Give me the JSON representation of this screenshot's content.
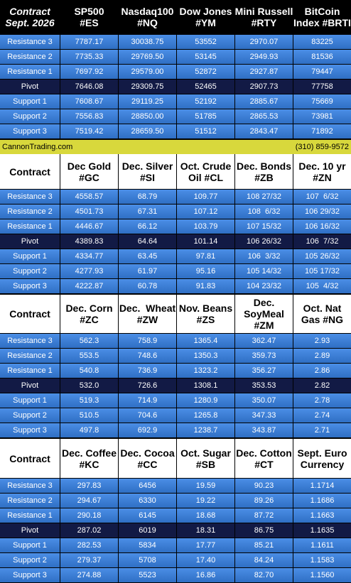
{
  "sections": [
    {
      "header": [
        [
          "Contract",
          "Sept. 2026"
        ],
        [
          "SP500",
          "#ES"
        ],
        [
          "Nasdaq100",
          "#NQ"
        ],
        [
          "Dow Jones",
          "#YM"
        ],
        [
          "Mini Russell",
          "#RTY"
        ],
        [
          "BitCoin",
          "Index #BRTI"
        ]
      ],
      "rows": [
        [
          "Resistance 3",
          "7787.17",
          "30038.75",
          "53552",
          "2970.07",
          "83225"
        ],
        [
          "Resistance 2",
          "7735.33",
          "29769.50",
          "53145",
          "2949.93",
          "81536"
        ],
        [
          "Resistance 1",
          "7697.92",
          "29579.00",
          "52872",
          "2927.87",
          "79447"
        ],
        [
          "Pivot",
          "7646.08",
          "29309.75",
          "52465",
          "2907.73",
          "77758"
        ],
        [
          "Support 1",
          "7608.67",
          "29119.25",
          "52192",
          "2885.67",
          "75669"
        ],
        [
          "Support 2",
          "7556.83",
          "28850.00",
          "51785",
          "2865.53",
          "73981"
        ],
        [
          "Support 3",
          "7519.42",
          "28659.50",
          "51512",
          "2843.47",
          "71892"
        ]
      ]
    },
    {
      "header": [
        [
          "Contract"
        ],
        [
          "Dec Gold",
          "#GC"
        ],
        [
          "Dec. Silver",
          "#SI"
        ],
        [
          "Oct. Crude",
          "Oil #CL"
        ],
        [
          "Dec. Bonds",
          "#ZB"
        ],
        [
          "Dec. 10 yr",
          "#ZN"
        ]
      ],
      "rows": [
        [
          "Resistance 3",
          "4558.57",
          "68.79",
          "109.77",
          "108 27/32",
          "107  6/32"
        ],
        [
          "Resistance 2",
          "4501.73",
          "67.31",
          "107.12",
          "108  6/32",
          "106 29/32"
        ],
        [
          "Resistance 1",
          "4446.67",
          "66.12",
          "103.79",
          "107 15/32",
          "106 16/32"
        ],
        [
          "Pivot",
          "4389.83",
          "64.64",
          "101.14",
          "106 26/32",
          "106  7/32"
        ],
        [
          "Support 1",
          "4334.77",
          "63.45",
          "97.81",
          "106  3/32",
          "105 26/32"
        ],
        [
          "Support 2",
          "4277.93",
          "61.97",
          "95.16",
          "105 14/32",
          "105 17/32"
        ],
        [
          "Support 3",
          "4222.87",
          "60.78",
          "91.83",
          "104 23/32",
          "105  4/32"
        ]
      ]
    },
    {
      "header": [
        [
          "Contract"
        ],
        [
          "Dec. Corn",
          "#ZC"
        ],
        [
          "Dec.  Wheat",
          "#ZW"
        ],
        [
          "Nov. Beans",
          "#ZS"
        ],
        [
          "Dec.",
          "SoyMeal",
          "#ZM"
        ],
        [
          "Oct. Nat",
          "Gas #NG"
        ]
      ],
      "rows": [
        [
          "Resistance 3",
          "562.3",
          "758.9",
          "1365.4",
          "362.47",
          "2.93"
        ],
        [
          "Resistance 2",
          "553.5",
          "748.6",
          "1350.3",
          "359.73",
          "2.89"
        ],
        [
          "Resistance 1",
          "540.8",
          "736.9",
          "1323.2",
          "356.27",
          "2.86"
        ],
        [
          "Pivot",
          "532.0",
          "726.6",
          "1308.1",
          "353.53",
          "2.82"
        ],
        [
          "Support 1",
          "519.3",
          "714.9",
          "1280.9",
          "350.07",
          "2.78"
        ],
        [
          "Support 2",
          "510.5",
          "704.6",
          "1265.8",
          "347.33",
          "2.74"
        ],
        [
          "Support 3",
          "497.8",
          "692.9",
          "1238.7",
          "343.87",
          "2.71"
        ]
      ]
    },
    {
      "header": [
        [
          "Contract"
        ],
        [
          "Dec. Coffee",
          "#KC"
        ],
        [
          "Dec. Cocoa",
          "#CC"
        ],
        [
          "Oct. Sugar",
          "#SB"
        ],
        [
          "Dec. Cotton",
          "#CT"
        ],
        [
          "Sept. Euro",
          "Currency"
        ]
      ],
      "rows": [
        [
          "Resistance 3",
          "297.83",
          "6456",
          "19.59",
          "90.23",
          "1.1714"
        ],
        [
          "Resistance 2",
          "294.67",
          "6330",
          "19.22",
          "89.26",
          "1.1686"
        ],
        [
          "Resistance 1",
          "290.18",
          "6145",
          "18.68",
          "87.72",
          "1.1663"
        ],
        [
          "Pivot",
          "287.02",
          "6019",
          "18.31",
          "86.75",
          "1.1635"
        ],
        [
          "Support 1",
          "282.53",
          "5834",
          "17.77",
          "85.21",
          "1.1611"
        ],
        [
          "Support 2",
          "279.37",
          "5708",
          "17.40",
          "84.24",
          "1.1583"
        ],
        [
          "Support 3",
          "274.88",
          "5523",
          "16.86",
          "82.70",
          "1.1560"
        ]
      ]
    }
  ],
  "banner": {
    "site": "CannonTrading.com",
    "phone": "(310) 859-9572"
  }
}
